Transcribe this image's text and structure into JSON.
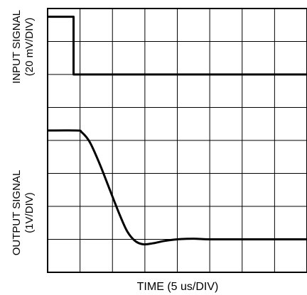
{
  "chart_data": {
    "type": "line",
    "xlabel": "TIME (5 us/DIV)",
    "input_axis": {
      "label_line1": "INPUT SIGNAL",
      "label_line2": "(20 mV/DIV)"
    },
    "output_axis": {
      "label_line1": "OUTPUT SIGNAL",
      "label_line2": "(1V/DIV)"
    },
    "grid": true,
    "x_divisions": 8,
    "y_divisions": 8,
    "x_range_div": [
      0,
      8
    ],
    "y_range_div": [
      0,
      8
    ],
    "series": [
      {
        "id": "input",
        "x_div": [
          0,
          0.8,
          0.8,
          0.85,
          8
        ],
        "y_div": [
          7.75,
          7.75,
          6.0,
          6.0,
          6.0
        ]
      },
      {
        "id": "output",
        "x_div": [
          0,
          0.9,
          1.05,
          1.3,
          1.6,
          1.9,
          2.2,
          2.45,
          2.7,
          2.95,
          3.25,
          3.6,
          4.0,
          4.5,
          5.0,
          6.0,
          7.0,
          8.0
        ],
        "y_div": [
          4.3,
          4.3,
          4.25,
          3.95,
          3.3,
          2.55,
          1.8,
          1.25,
          0.95,
          0.85,
          0.88,
          0.95,
          1.0,
          1.02,
          1.0,
          1.0,
          1.0,
          1.0
        ]
      }
    ]
  }
}
